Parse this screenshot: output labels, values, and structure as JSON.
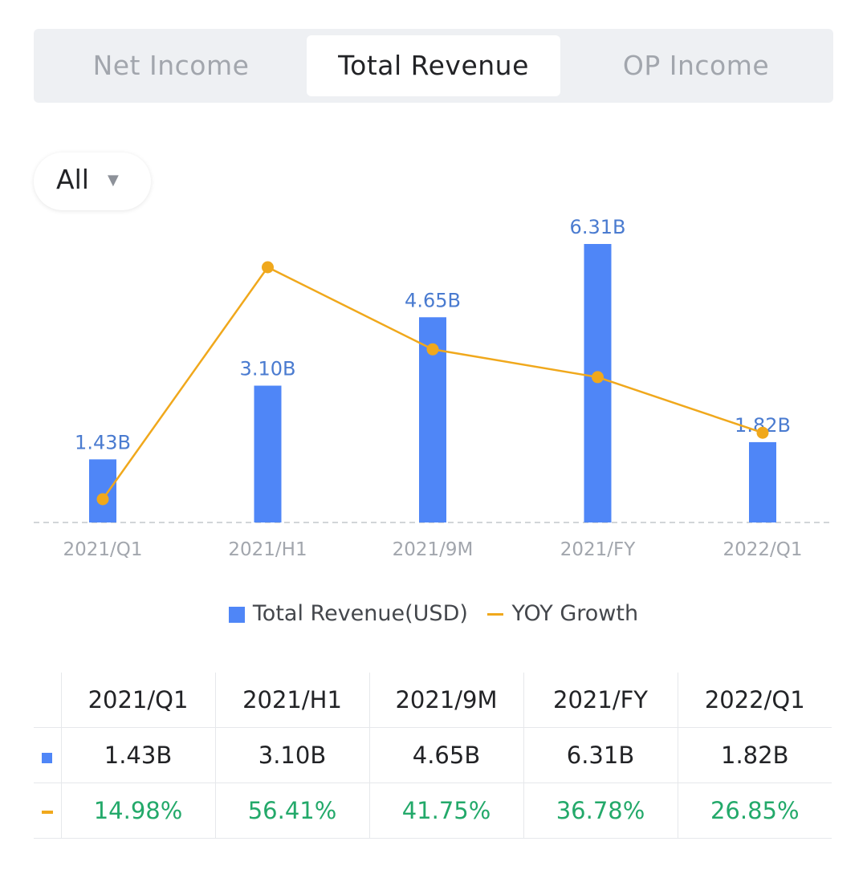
{
  "tabs": [
    {
      "label": "Net Income",
      "active": false
    },
    {
      "label": "Total Revenue",
      "active": true
    },
    {
      "label": "OP Income",
      "active": false
    }
  ],
  "filter": {
    "label": "All",
    "icon": "caret-down-icon"
  },
  "colors": {
    "bar": "#4f86f7",
    "line": "#f0a81c",
    "positive": "#23a96a",
    "bar_label": "#4a7bd0"
  },
  "chart_data": {
    "type": "bar",
    "categories": [
      "2021/Q1",
      "2021/H1",
      "2021/9M",
      "2021/FY",
      "2022/Q1"
    ],
    "series": [
      {
        "name": "Total Revenue(USD)",
        "type": "bar",
        "values": [
          1.43,
          3.1,
          4.65,
          6.31,
          1.82
        ],
        "labels": [
          "1.43B",
          "3.10B",
          "4.65B",
          "6.31B",
          "1.82B"
        ]
      },
      {
        "name": "YOY Growth",
        "type": "line",
        "values": [
          14.98,
          56.41,
          41.75,
          36.78,
          26.85
        ]
      }
    ],
    "legend_position": "bottom",
    "grid": false
  },
  "table": {
    "headers": [
      "2021/Q1",
      "2021/H1",
      "2021/9M",
      "2021/FY",
      "2022/Q1"
    ],
    "revenue_row": [
      "1.43B",
      "3.10B",
      "4.65B",
      "6.31B",
      "1.82B"
    ],
    "growth_row": [
      "14.98%",
      "56.41%",
      "41.75%",
      "36.78%",
      "26.85%"
    ]
  }
}
